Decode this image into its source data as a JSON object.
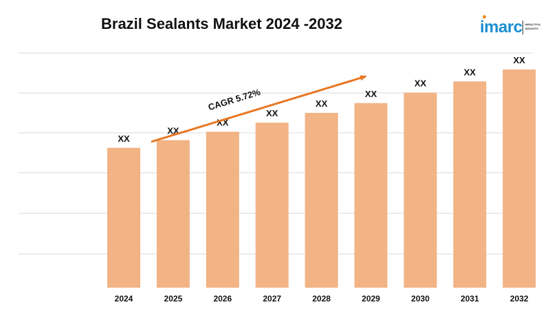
{
  "title": "Brazil Sealants Market 2024 -2032",
  "logo": {
    "word": "imarc",
    "tagline_1": "IMPACTFUL",
    "tagline_2": "INSIGHTS"
  },
  "colors": {
    "bar": "#F2B385",
    "arrow": "#E87722",
    "grid": "#D9D9D9",
    "text": "#111111"
  },
  "chart_data": {
    "type": "bar",
    "title": "Brazil Sealants Market 2024 -2032",
    "categories": [
      "2024",
      "2025",
      "2026",
      "2027",
      "2028",
      "2029",
      "2030",
      "2031",
      "2032"
    ],
    "values": [
      2.0,
      2.11,
      2.23,
      2.36,
      2.5,
      2.64,
      2.79,
      2.95,
      3.12
    ],
    "data_labels": [
      "XX",
      "XX",
      "XX",
      "XX",
      "XX",
      "XX",
      "XX",
      "XX",
      "XX"
    ],
    "annotation": "CAGR 5.72%",
    "xlabel": "",
    "ylabel": "",
    "grid": true,
    "legend": "none"
  }
}
